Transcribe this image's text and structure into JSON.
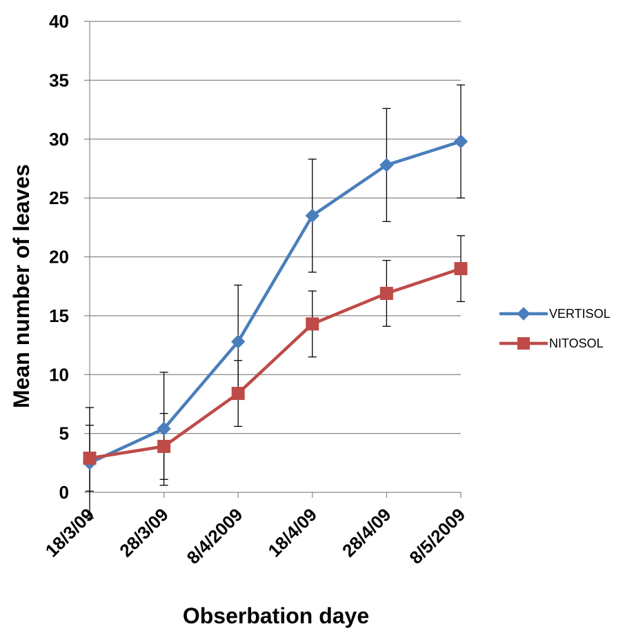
{
  "chart_data": {
    "type": "line",
    "title": "",
    "xlabel": "Obserbation daye",
    "ylabel": "Mean number of leaves",
    "categories": [
      "18/3/09",
      "28/3/09",
      "8/4/2009",
      "18/4/09",
      "28/4/09",
      "8/5/2009"
    ],
    "ylim": [
      0,
      40
    ],
    "yticks": [
      0,
      5,
      10,
      15,
      20,
      25,
      30,
      35,
      40
    ],
    "grid": true,
    "legend_position": "right",
    "series": [
      {
        "name": "VERTISOL",
        "color": "#4a7ebb",
        "marker": "diamond",
        "values": [
          2.5,
          5.4,
          12.8,
          23.5,
          27.8,
          29.8
        ],
        "errors": [
          4.7,
          4.8,
          4.8,
          4.8,
          4.8,
          4.8
        ]
      },
      {
        "name": "NITOSOL",
        "color": "#be4b48",
        "marker": "square",
        "values": [
          2.9,
          3.9,
          8.4,
          14.3,
          16.9,
          19.0
        ],
        "errors": [
          2.8,
          2.8,
          2.8,
          2.8,
          2.8,
          2.8
        ]
      }
    ]
  }
}
